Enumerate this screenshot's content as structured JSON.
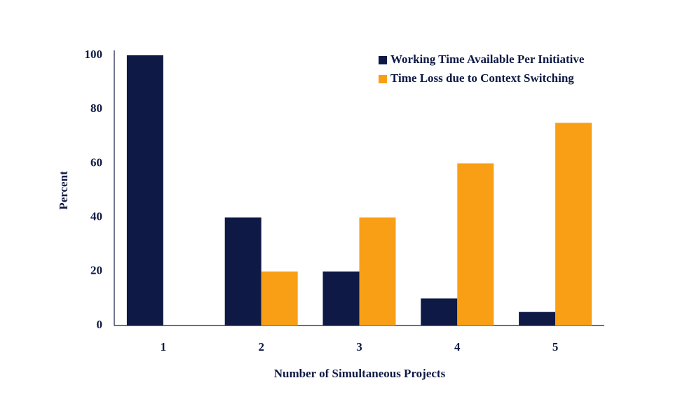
{
  "chart_data": {
    "type": "bar",
    "x_label": "Number of Simultaneous Projects",
    "y_label": "Percent",
    "categories": [
      "1",
      "2",
      "3",
      "4",
      "5"
    ],
    "series": [
      {
        "name": "Working Time Available Per Initiative",
        "color": "#0e1a45",
        "values": [
          100,
          40,
          20,
          10,
          5
        ]
      },
      {
        "name": "Time Loss due to Context Switching",
        "color": "#f99f15",
        "values": [
          0,
          20,
          40,
          60,
          75
        ]
      }
    ],
    "ylim": [
      0,
      100
    ],
    "yticks": [
      0,
      20,
      40,
      60,
      80,
      100
    ],
    "grid": false,
    "legend": "top-right"
  }
}
